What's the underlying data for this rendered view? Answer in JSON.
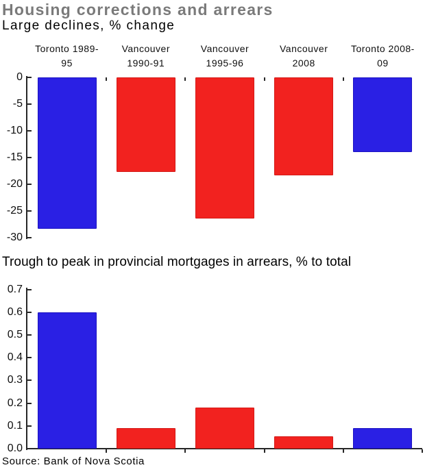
{
  "header": {
    "title": "Housing corrections and arrears",
    "source": "Source: Bank of Nova Scotia"
  },
  "colors": {
    "blue": "#2a20e4",
    "blue_border": "#1b12c2",
    "red": "#f2221f",
    "red_border": "#d41815",
    "title_gray": "#7a7a7a",
    "text": "#0e0e0e",
    "axis": "#262626"
  },
  "chart_data": [
    {
      "type": "bar",
      "title": "Large declines, % change",
      "categories": [
        "Toronto 1989-95",
        "Vancouver 1990-91",
        "Vancouver 1995-96",
        "Vancouver 2008",
        "Toronto 2008-09"
      ],
      "values": [
        -28.4,
        -17.7,
        -26.5,
        -18.4,
        -14.0
      ],
      "bar_colors": [
        "blue",
        "red",
        "red",
        "red",
        "blue"
      ],
      "ylim": [
        -30,
        0
      ],
      "ytick_labels": [
        "0",
        "-5",
        "-10",
        "-15",
        "-20",
        "-25",
        "-30"
      ],
      "category_label_position": "top",
      "grid": false,
      "legend": "none"
    },
    {
      "type": "bar",
      "title": "Trough to peak in provincial mortgages in arrears, % to total",
      "categories": [
        "Toronto 1989-95",
        "Vancouver 1990-91",
        "Vancouver 1995-96",
        "Vancouver 2008",
        "Toronto 2008-09"
      ],
      "values": [
        0.6,
        0.09,
        0.18,
        0.055,
        0.09
      ],
      "bar_colors": [
        "blue",
        "red",
        "red",
        "red",
        "blue"
      ],
      "ylim": [
        0,
        0.7
      ],
      "ytick_labels": [
        "0.7",
        "0.6",
        "0.5",
        "0.4",
        "0.3",
        "0.2",
        "0.1",
        "0.0"
      ],
      "category_label_position": "none",
      "grid": false,
      "legend": "none"
    }
  ]
}
